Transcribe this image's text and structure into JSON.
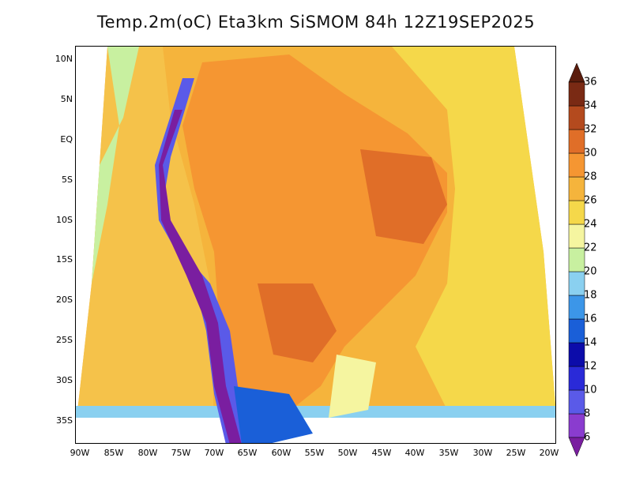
{
  "title": "Temp.2m(oC) Eta3km SiSMOM 84h 12Z19SEP2025",
  "map": {
    "variable": "2 m air temperature",
    "units": "oC",
    "model": "Eta3km SiSMOM",
    "forecast_hour": "84h",
    "init": "12Z19SEP2025",
    "lat_labels": [
      "10N",
      "5N",
      "EQ",
      "5S",
      "10S",
      "15S",
      "20S",
      "25S",
      "30S",
      "35S"
    ],
    "lon_labels": [
      "90W",
      "85W",
      "80W",
      "75W",
      "70W",
      "65W",
      "60W",
      "55W",
      "50W",
      "45W",
      "40W",
      "35W",
      "30W",
      "25W",
      "20W"
    ]
  },
  "colorbar": {
    "labels": [
      "6",
      "8",
      "10",
      "12",
      "14",
      "16",
      "18",
      "20",
      "22",
      "24",
      "26",
      "28",
      "30",
      "32",
      "34",
      "36"
    ],
    "colors": [
      "#7a1ea0",
      "#8a3ccf",
      "#5a5ae8",
      "#2a2ad8",
      "#0c0caa",
      "#1a5fd8",
      "#3c96e8",
      "#8ad0f0",
      "#c8f0a0",
      "#f5f5a0",
      "#f5d84a",
      "#f5b43c",
      "#f59632",
      "#e06e28",
      "#b44a1e",
      "#7a2a14",
      "#5a1c0c"
    ]
  }
}
